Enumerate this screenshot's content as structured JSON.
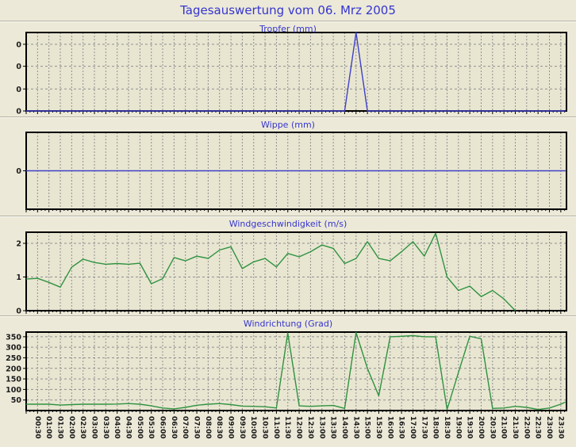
{
  "page": {
    "title": "Tagesauswertung vom 06. Mrz 2005"
  },
  "colors": {
    "page_background": "#ece9d8",
    "plot_background": "#e8e6d1",
    "title_blue": "#3535cf",
    "frame_black": "#000000",
    "grid_grey": "#8f8f8f",
    "tick_label": "#1c1c1c",
    "rain_line_blue": "#4040c8",
    "wind_line_green": "#2f9240"
  },
  "x_axis": {
    "labels": [
      "00:30",
      "01:00",
      "01:30",
      "02:00",
      "02:30",
      "03:00",
      "03:30",
      "04:00",
      "04:30",
      "05:00",
      "05:30",
      "06:00",
      "06:30",
      "07:00",
      "07:30",
      "08:00",
      "08:30",
      "09:00",
      "09:30",
      "10:00",
      "10:30",
      "11:00",
      "11:30",
      "12:00",
      "12:30",
      "13:00",
      "13:30",
      "14:00",
      "14:30",
      "15:00",
      "15:30",
      "16:00",
      "16:30",
      "17:00",
      "17:30",
      "18:00",
      "18:30",
      "19:00",
      "19:30",
      "20:00",
      "20:30",
      "21:00",
      "21:30",
      "22:00",
      "22:30",
      "23:00",
      "23:30"
    ],
    "first": 0.5,
    "step": 0.5
  },
  "chart_data": [
    {
      "type": "line",
      "title": "Tropfer (mm)",
      "line_color": "#4040c8",
      "xlim": [
        0,
        23.75
      ],
      "ylim": [
        0,
        1
      ],
      "yticks": [
        {
          "v": 0,
          "label": "0"
        },
        {
          "v": 0.28,
          "label": "0"
        },
        {
          "v": 0.57,
          "label": "0"
        },
        {
          "v": 0.85,
          "label": "0"
        }
      ],
      "x": [
        0,
        14.0,
        14.5,
        15.0,
        23.7
      ],
      "values": [
        0,
        0,
        1.0,
        0,
        0
      ]
    },
    {
      "type": "line",
      "title": "Wippe (mm)",
      "line_color": "#4040c8",
      "xlim": [
        0,
        23.75
      ],
      "ylim": [
        -1,
        1
      ],
      "yticks": [
        {
          "v": 0,
          "label": "0"
        }
      ],
      "x": [
        0,
        23.7
      ],
      "values": [
        0,
        0
      ]
    },
    {
      "type": "line",
      "title": "Windgeschwindigkeit (m/s)",
      "line_color": "#2f9240",
      "xlim": [
        0,
        23.75
      ],
      "ylim": [
        0,
        2.33
      ],
      "yticks": [
        {
          "v": 0,
          "label": "0"
        },
        {
          "v": 1,
          "label": "1"
        },
        {
          "v": 2,
          "label": "2"
        }
      ],
      "x": [
        0,
        0.5,
        1,
        1.5,
        2,
        2.5,
        3,
        3.5,
        4,
        4.5,
        5,
        5.5,
        6,
        6.5,
        7,
        7.5,
        8,
        8.5,
        9,
        9.5,
        10,
        10.5,
        11,
        11.5,
        12,
        12.5,
        13,
        13.5,
        14,
        14.5,
        15,
        15.5,
        16,
        16.5,
        17,
        17.5,
        18,
        18.5,
        19,
        19.5,
        20,
        20.5,
        21,
        21.5
      ],
      "values": [
        0.94,
        0.96,
        0.84,
        0.7,
        1.29,
        1.53,
        1.43,
        1.38,
        1.4,
        1.38,
        1.41,
        0.8,
        0.95,
        1.58,
        1.48,
        1.62,
        1.55,
        1.8,
        1.9,
        1.25,
        1.45,
        1.55,
        1.3,
        1.7,
        1.6,
        1.75,
        1.95,
        1.85,
        1.4,
        1.55,
        2.05,
        1.55,
        1.48,
        1.75,
        2.05,
        1.62,
        2.3,
        1.0,
        0.6,
        0.73,
        0.42,
        0.6,
        0.35,
        0.0
      ]
    },
    {
      "type": "line",
      "title": "Windrichtung (Grad)",
      "line_color": "#2f9240",
      "xlim": [
        0,
        23.75
      ],
      "ylim": [
        0,
        372
      ],
      "yticks": [
        {
          "v": 50,
          "label": "50"
        },
        {
          "v": 100,
          "label": "100"
        },
        {
          "v": 150,
          "label": "150"
        },
        {
          "v": 200,
          "label": "200"
        },
        {
          "v": 250,
          "label": "250"
        },
        {
          "v": 300,
          "label": "300"
        },
        {
          "v": 350,
          "label": "350"
        }
      ],
      "x": [
        0,
        0.5,
        1,
        1.5,
        2,
        2.5,
        3,
        3.5,
        4,
        4.5,
        5,
        5.5,
        6,
        6.5,
        7,
        7.5,
        8,
        8.5,
        9,
        9.5,
        10,
        10.5,
        11,
        11.5,
        12,
        12.5,
        13,
        13.5,
        14,
        14.5,
        15,
        15.5,
        16,
        16.5,
        17,
        17.5,
        18,
        18.5,
        19,
        19.5,
        20,
        20.5,
        21,
        21.5,
        22,
        22.5,
        23,
        23.5,
        23.7
      ],
      "values": [
        30,
        30,
        30,
        26,
        28,
        30,
        30,
        30,
        31,
        33,
        30,
        22,
        12,
        8,
        15,
        25,
        30,
        33,
        28,
        21,
        20,
        18,
        12,
        368,
        22,
        20,
        22,
        24,
        10,
        370,
        200,
        70,
        350,
        352,
        355,
        350,
        350,
        5,
        180,
        352,
        340,
        10,
        12,
        20,
        15,
        5,
        12,
        30,
        40
      ]
    }
  ]
}
